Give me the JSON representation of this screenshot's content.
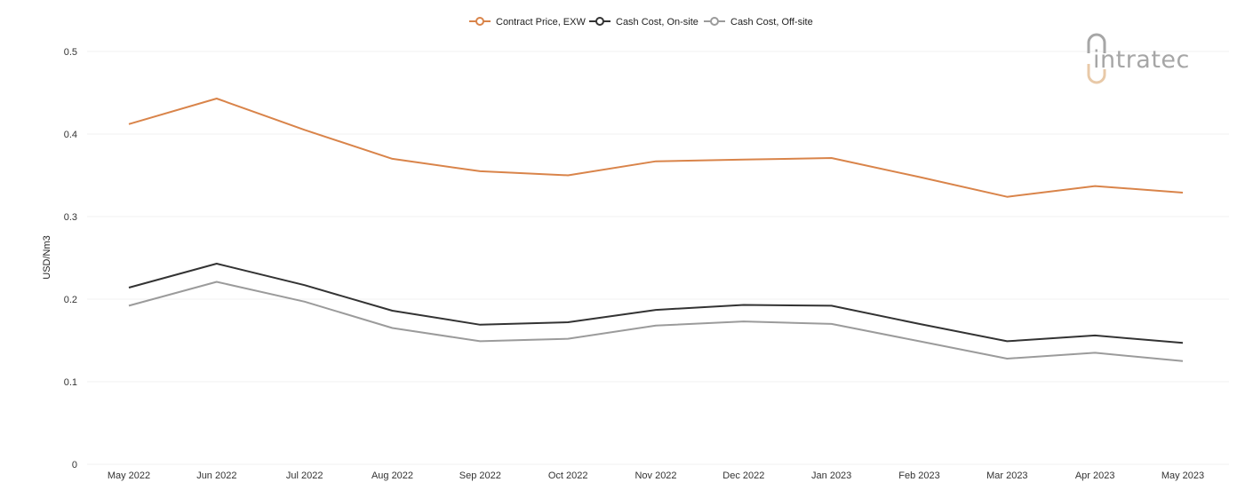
{
  "logo": {
    "text": "intratec",
    "accent_color": "#e8c9a8",
    "text_color": "#a6a6a6"
  },
  "chart_data": {
    "type": "line",
    "title": "",
    "xlabel": "",
    "ylabel": "USD/Nm3",
    "ylim": [
      0,
      0.5
    ],
    "yticks": [
      0,
      0.1,
      0.2,
      0.3,
      0.4,
      0.5
    ],
    "ytick_labels": [
      "0",
      "0.1",
      "0.2",
      "0.3",
      "0.4",
      "0.5"
    ],
    "grid": true,
    "legend_position": "top-center",
    "categories": [
      "May 2022",
      "Jun 2022",
      "Jul 2022",
      "Aug 2022",
      "Sep 2022",
      "Oct 2022",
      "Nov 2022",
      "Dec 2022",
      "Jan 2023",
      "Feb 2023",
      "Mar 2023",
      "Apr 2023",
      "May 2023"
    ],
    "series": [
      {
        "name": "Contract Price, EXW",
        "color": "#d9844a",
        "values": [
          0.412,
          0.443,
          0.405,
          0.37,
          0.355,
          0.35,
          0.367,
          0.369,
          0.371,
          0.348,
          0.324,
          0.337,
          0.329
        ]
      },
      {
        "name": "Cash Cost, On-site",
        "color": "#333333",
        "values": [
          0.214,
          0.243,
          0.217,
          0.186,
          0.169,
          0.172,
          0.187,
          0.193,
          0.192,
          0.17,
          0.149,
          0.156,
          0.147
        ]
      },
      {
        "name": "Cash Cost, Off-site",
        "color": "#9b9b9b",
        "values": [
          0.192,
          0.221,
          0.197,
          0.165,
          0.149,
          0.152,
          0.168,
          0.173,
          0.17,
          0.149,
          0.128,
          0.135,
          0.125
        ]
      }
    ]
  }
}
